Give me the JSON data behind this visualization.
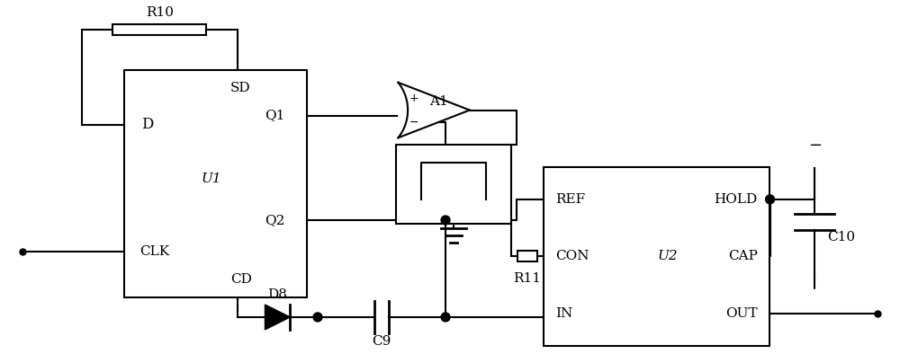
{
  "bg_color": "#ffffff",
  "line_color": "#000000",
  "line_width": 1.5,
  "figsize": [
    10.0,
    4.04
  ],
  "dpi": 100,
  "u1_label": "U1",
  "u2_label": "U2",
  "r10_label": "R10",
  "r11_label": "R11",
  "d8_label": "D8",
  "c9_label": "C9",
  "c10_label": "C10",
  "a1_label": "A1",
  "clk_label": "CLK",
  "d_label": "D",
  "sd_label": "SD",
  "cd_label": "CD",
  "q1_label": "Q1",
  "q2_label": "Q2",
  "ref_label": "REF",
  "con_label": "CON",
  "in_label": "IN",
  "hold_label": "HOLD",
  "cap_label": "CAP",
  "out_label": "OUT"
}
